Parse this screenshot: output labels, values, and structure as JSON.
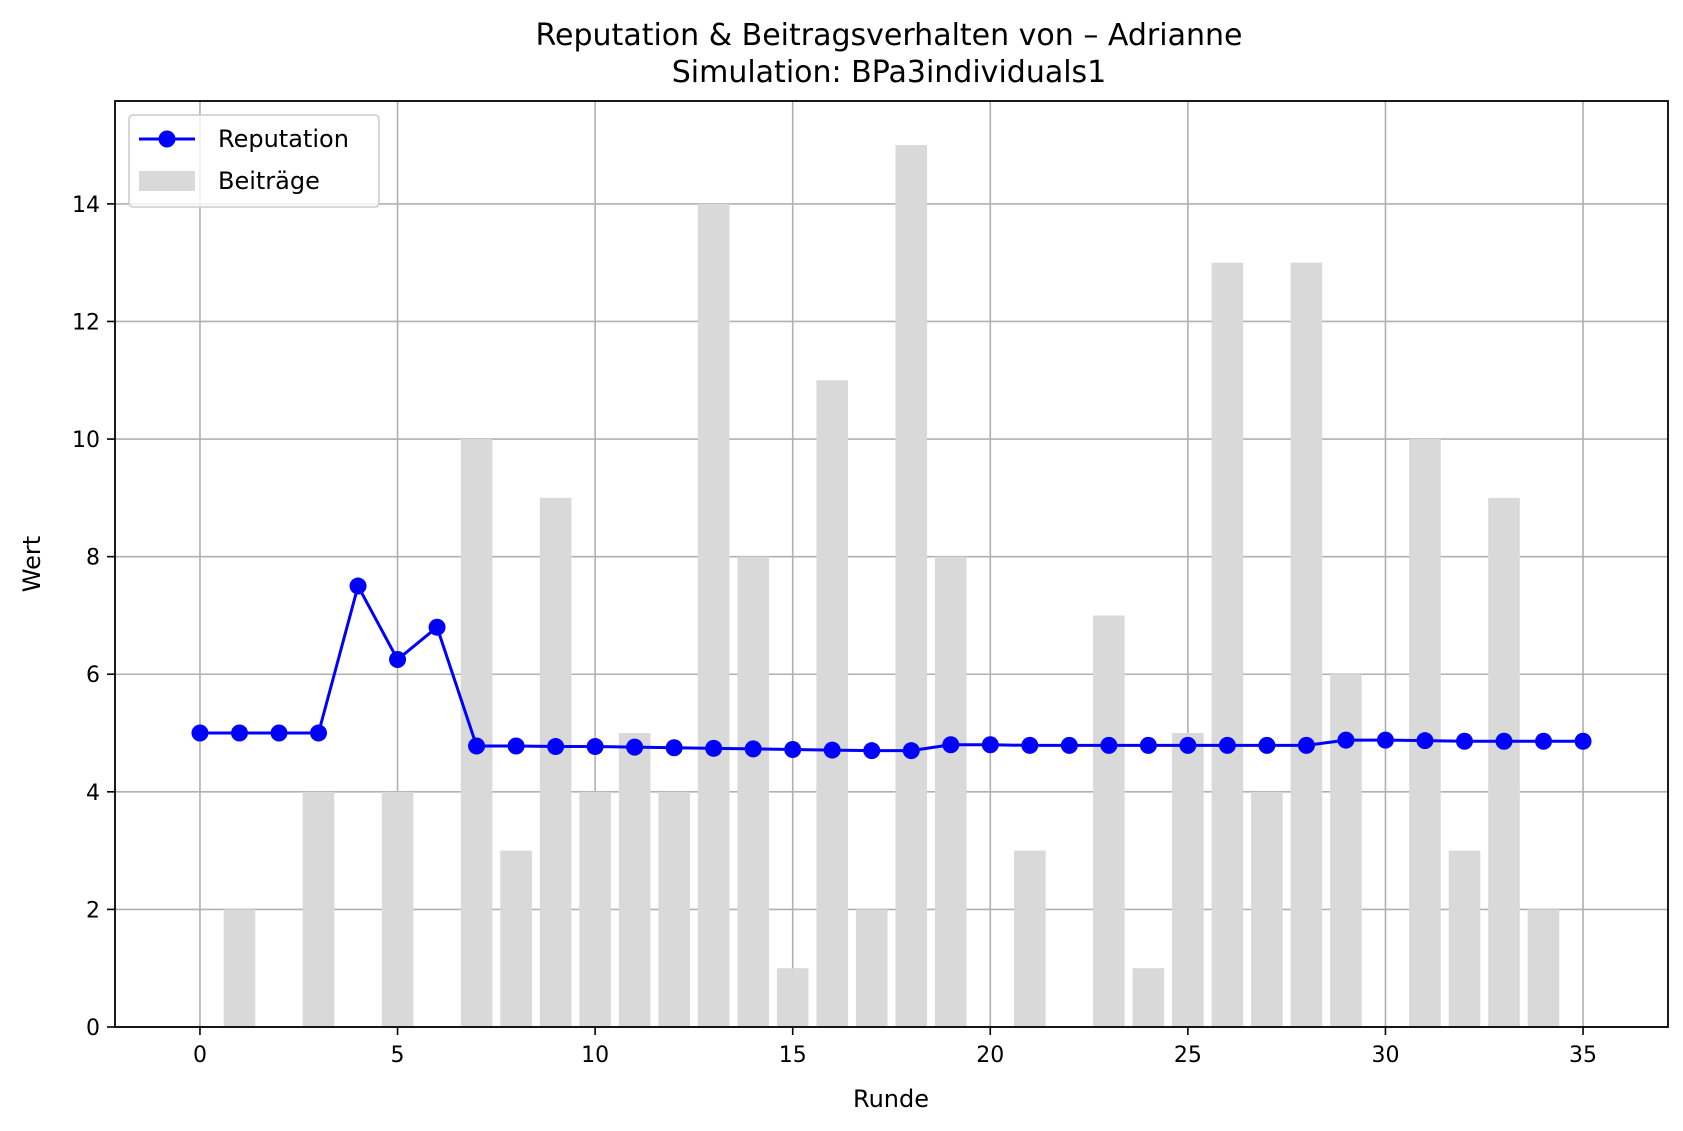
{
  "chart_data": {
    "type": "bar+line",
    "title": "Reputation & Beitragsverhalten von – Adrianne",
    "subtitle": "Simulation: BPa3individuals1",
    "xlabel": "Runde",
    "ylabel": "Wert",
    "xlim": [
      -2.15,
      37.15
    ],
    "ylim": [
      0,
      15.75
    ],
    "xticks": [
      0,
      5,
      10,
      15,
      20,
      25,
      30,
      35
    ],
    "yticks": [
      0,
      2,
      4,
      6,
      8,
      10,
      12,
      14
    ],
    "grid": true,
    "legend": {
      "position": "top-left"
    },
    "series": [
      {
        "name": "Reputation",
        "type": "line",
        "marker": "circle",
        "color": "#0000ff",
        "x": [
          0,
          1,
          2,
          3,
          4,
          5,
          6,
          7,
          8,
          9,
          10,
          11,
          12,
          13,
          14,
          15,
          16,
          17,
          18,
          19,
          20,
          21,
          22,
          23,
          24,
          25,
          26,
          27,
          28,
          29,
          30,
          31,
          32,
          33,
          34,
          35
        ],
        "values": [
          5.0,
          5.0,
          5.0,
          5.0,
          7.5,
          6.25,
          6.8,
          4.78,
          4.78,
          4.77,
          4.77,
          4.76,
          4.75,
          4.74,
          4.73,
          4.72,
          4.71,
          4.7,
          4.7,
          4.8,
          4.8,
          4.79,
          4.79,
          4.79,
          4.79,
          4.79,
          4.79,
          4.79,
          4.79,
          4.88,
          4.88,
          4.87,
          4.86,
          4.86,
          4.86,
          4.86
        ]
      },
      {
        "name": "Beiträge",
        "type": "bar",
        "color": "#d9d9d9",
        "x": [
          0,
          1,
          2,
          3,
          4,
          5,
          6,
          7,
          8,
          9,
          10,
          11,
          12,
          13,
          14,
          15,
          16,
          17,
          18,
          19,
          20,
          21,
          22,
          23,
          24,
          25,
          26,
          27,
          28,
          29,
          30,
          31,
          32,
          33,
          34,
          35
        ],
        "values": [
          0,
          2,
          0,
          4,
          0,
          4,
          0,
          10,
          3,
          9,
          4,
          5,
          4,
          14,
          8,
          1,
          11,
          2,
          15,
          8,
          0,
          3,
          0,
          7,
          1,
          5,
          13,
          4,
          13,
          6,
          0,
          10,
          3,
          9,
          2,
          0
        ]
      }
    ]
  }
}
